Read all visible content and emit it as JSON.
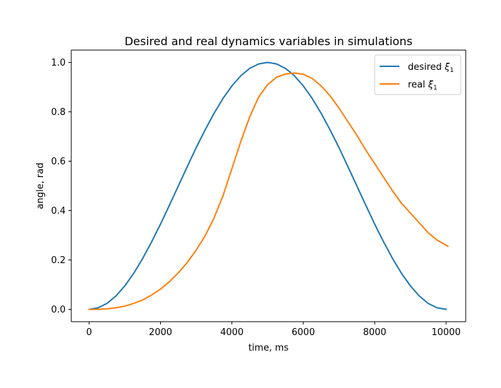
{
  "chart_data": {
    "type": "line",
    "title": "Desired and real dynamics variables in simulations",
    "xlabel": "time, ms",
    "ylabel": "angle, rad",
    "xlim": [
      -500,
      10550
    ],
    "ylim": [
      -0.05,
      1.05
    ],
    "xticks": [
      0,
      2000,
      4000,
      6000,
      8000,
      10000
    ],
    "xtick_labels": [
      "0",
      "2000",
      "4000",
      "6000",
      "8000",
      "10000"
    ],
    "yticks": [
      0.0,
      0.2,
      0.4,
      0.6,
      0.8,
      1.0
    ],
    "ytick_labels": [
      "0.0",
      "0.2",
      "0.4",
      "0.6",
      "0.8",
      "1.0"
    ],
    "grid": false,
    "legend_position": "top-right",
    "series": [
      {
        "name_text": "desired ",
        "name_symbol": "ξ",
        "name_subscript": "1",
        "color": "#1f77b4",
        "x": [
          0,
          250,
          500,
          750,
          1000,
          1250,
          1500,
          1750,
          2000,
          2250,
          2500,
          2750,
          3000,
          3250,
          3500,
          3750,
          4000,
          4250,
          4500,
          4750,
          5000,
          5250,
          5500,
          5750,
          6000,
          6250,
          6500,
          6750,
          7000,
          7250,
          7500,
          7750,
          8000,
          8250,
          8500,
          8750,
          9000,
          9250,
          9500,
          9750,
          10000
        ],
        "y": [
          0.0,
          0.006,
          0.024,
          0.054,
          0.095,
          0.146,
          0.206,
          0.273,
          0.345,
          0.422,
          0.5,
          0.578,
          0.655,
          0.727,
          0.794,
          0.854,
          0.905,
          0.946,
          0.976,
          0.994,
          1.0,
          0.994,
          0.976,
          0.946,
          0.905,
          0.854,
          0.794,
          0.727,
          0.655,
          0.578,
          0.5,
          0.422,
          0.345,
          0.273,
          0.206,
          0.146,
          0.095,
          0.054,
          0.024,
          0.006,
          0.0
        ]
      },
      {
        "name_text": "real ",
        "name_symbol": "ξ",
        "name_subscript": "1",
        "color": "#ff7f0e",
        "x": [
          0,
          250,
          500,
          750,
          1000,
          1250,
          1500,
          1750,
          2000,
          2250,
          2500,
          2750,
          3000,
          3250,
          3500,
          3750,
          4000,
          4250,
          4500,
          4750,
          5000,
          5250,
          5500,
          5750,
          6000,
          6250,
          6500,
          6750,
          7000,
          7250,
          7500,
          7750,
          8000,
          8250,
          8500,
          8750,
          9000,
          9250,
          9500,
          9750,
          10000,
          10050
        ],
        "y": [
          0.0,
          0.0,
          0.002,
          0.006,
          0.013,
          0.024,
          0.038,
          0.058,
          0.082,
          0.112,
          0.148,
          0.19,
          0.24,
          0.298,
          0.37,
          0.46,
          0.57,
          0.68,
          0.78,
          0.86,
          0.91,
          0.94,
          0.953,
          0.957,
          0.952,
          0.935,
          0.905,
          0.865,
          0.815,
          0.76,
          0.705,
          0.645,
          0.59,
          0.535,
          0.48,
          0.43,
          0.39,
          0.35,
          0.31,
          0.28,
          0.26,
          0.255
        ]
      }
    ]
  }
}
